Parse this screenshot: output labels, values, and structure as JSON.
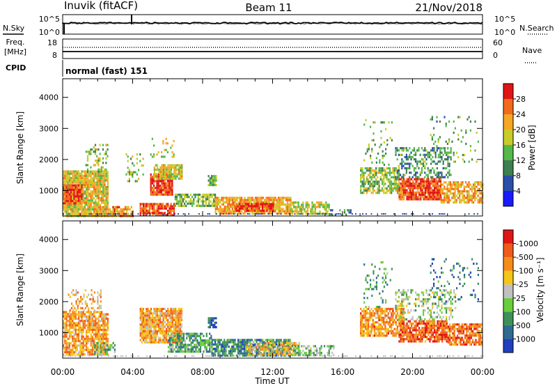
{
  "header": {
    "radar": "Inuvik (fitACF)",
    "beam": "Beam 11",
    "date": "21/Nov/2018"
  },
  "status_panels": {
    "nsky_label": "N.Sky",
    "nsearch_label": "N.Search",
    "noise_ticks_left": [
      "10^5",
      "10^0"
    ],
    "noise_ticks_right": [
      "10^5",
      "10^0"
    ],
    "freq_label": "Freq.",
    "freq_unit": "[MHz]",
    "freq_ticks": [
      "18",
      "8"
    ],
    "nave_label": "Nave",
    "nave_ticks": [
      "60",
      "0"
    ],
    "cpid_label": "CPID",
    "cpid_text": "normal (fast) 151"
  },
  "chart_data": [
    {
      "type": "heatmap",
      "name": "power",
      "ylabel": "Slant Range [km]",
      "xlabel": "",
      "x_range_hours": [
        0,
        24
      ],
      "ylim": [
        180,
        4600
      ],
      "y_ticks": [
        1000,
        2000,
        3000,
        4000
      ],
      "colorbar": {
        "label": "Power [dB]",
        "ticks": [
          4,
          8,
          12,
          16,
          20,
          24,
          28
        ],
        "colors": [
          "#1a1aff",
          "#2b4fa8",
          "#3f7f4f",
          "#55b84a",
          "#c8cc2a",
          "#f5a623",
          "#f26a1b",
          "#e01515"
        ],
        "scale": "0 to 30 dB"
      },
      "blobs": [
        {
          "t0": 0.0,
          "t1": 2.6,
          "r0": 200,
          "r1": 1650,
          "level": 0.62,
          "dens": 0.92
        },
        {
          "t0": 0.0,
          "t1": 1.1,
          "r0": 600,
          "r1": 1200,
          "level": 0.85,
          "dens": 0.9
        },
        {
          "t0": 1.3,
          "t1": 2.6,
          "r0": 1600,
          "r1": 2500,
          "level": 0.5,
          "dens": 0.3
        },
        {
          "t0": 2.4,
          "t1": 4.0,
          "r0": 200,
          "r1": 500,
          "level": 0.75,
          "dens": 0.75
        },
        {
          "t0": 3.6,
          "t1": 4.6,
          "r0": 1300,
          "r1": 2200,
          "level": 0.5,
          "dens": 0.25
        },
        {
          "t0": 4.4,
          "t1": 6.4,
          "r0": 200,
          "r1": 600,
          "level": 0.85,
          "dens": 0.85
        },
        {
          "t0": 5.0,
          "t1": 6.3,
          "r0": 850,
          "r1": 1550,
          "level": 0.9,
          "dens": 0.92
        },
        {
          "t0": 5.2,
          "t1": 6.8,
          "r0": 1400,
          "r1": 1850,
          "level": 0.6,
          "dens": 0.85
        },
        {
          "t0": 5.0,
          "t1": 6.4,
          "r0": 2100,
          "r1": 2700,
          "level": 0.55,
          "dens": 0.2
        },
        {
          "t0": 6.4,
          "t1": 8.7,
          "r0": 500,
          "r1": 900,
          "level": 0.45,
          "dens": 0.7
        },
        {
          "t0": 8.7,
          "t1": 13.0,
          "r0": 280,
          "r1": 800,
          "level": 0.7,
          "dens": 0.85
        },
        {
          "t0": 9.8,
          "t1": 12.0,
          "r0": 350,
          "r1": 600,
          "level": 0.9,
          "dens": 0.8
        },
        {
          "t0": 8.3,
          "t1": 8.8,
          "r0": 1150,
          "r1": 1500,
          "level": 0.45,
          "dens": 0.8
        },
        {
          "t0": 13.0,
          "t1": 15.2,
          "r0": 250,
          "r1": 650,
          "level": 0.55,
          "dens": 0.7
        },
        {
          "t0": 15.2,
          "t1": 16.5,
          "r0": 200,
          "r1": 400,
          "level": 0.3,
          "dens": 0.4
        },
        {
          "t0": 17.0,
          "t1": 19.2,
          "r0": 900,
          "r1": 1750,
          "level": 0.5,
          "dens": 0.7
        },
        {
          "t0": 17.2,
          "t1": 18.8,
          "r0": 1800,
          "r1": 3300,
          "level": 0.45,
          "dens": 0.15
        },
        {
          "t0": 19.2,
          "t1": 21.6,
          "r0": 750,
          "r1": 1400,
          "level": 0.88,
          "dens": 0.9
        },
        {
          "t0": 19.0,
          "t1": 22.2,
          "r0": 1400,
          "r1": 2400,
          "level": 0.35,
          "dens": 0.45
        },
        {
          "t0": 21.6,
          "t1": 24.0,
          "r0": 650,
          "r1": 1300,
          "level": 0.7,
          "dens": 0.75
        },
        {
          "t0": 21.0,
          "t1": 23.8,
          "r0": 1900,
          "r1": 3400,
          "level": 0.4,
          "dens": 0.12
        }
      ]
    },
    {
      "type": "heatmap",
      "name": "velocity",
      "ylabel": "Slant Range [km]",
      "xlabel": "Time UT",
      "x_ticks": [
        "00:00",
        "04:00",
        "08:00",
        "12:00",
        "16:00",
        "20:00",
        "00:00"
      ],
      "ylim": [
        180,
        4600
      ],
      "y_ticks": [
        1000,
        2000,
        3000,
        4000
      ],
      "colorbar": {
        "label": "Velocity [m s⁻¹]",
        "ticks": [
          "1000",
          "500",
          "100",
          "25",
          "-25",
          "-100",
          "-500",
          "-1000"
        ],
        "colors": [
          "#1f3fbf",
          "#2f6b8f",
          "#3f8f5a",
          "#6acd3a",
          "#c0c0c0",
          "#f5c518",
          "#f58c1a",
          "#f05a1a",
          "#e01515"
        ]
      },
      "blobs": [
        {
          "t0": 0.0,
          "t1": 2.6,
          "r0": 300,
          "r1": 1700,
          "level": 0.7,
          "dens": 0.8
        },
        {
          "t0": 0.3,
          "t1": 2.2,
          "r0": 1700,
          "r1": 2400,
          "level": 0.65,
          "dens": 0.3
        },
        {
          "t0": 1.8,
          "t1": 3.0,
          "r0": 300,
          "r1": 700,
          "level": 0.35,
          "dens": 0.5
        },
        {
          "t0": 4.4,
          "t1": 6.8,
          "r0": 700,
          "r1": 1800,
          "level": 0.68,
          "dens": 0.9
        },
        {
          "t0": 6.0,
          "t1": 8.5,
          "r0": 400,
          "r1": 1000,
          "level": 0.3,
          "dens": 0.75
        },
        {
          "t0": 8.5,
          "t1": 13.0,
          "r0": 250,
          "r1": 800,
          "level": 0.25,
          "dens": 0.8
        },
        {
          "t0": 10.5,
          "t1": 13.5,
          "r0": 300,
          "r1": 700,
          "level": 0.62,
          "dens": 0.6
        },
        {
          "t0": 13.0,
          "t1": 15.5,
          "r0": 250,
          "r1": 600,
          "level": 0.4,
          "dens": 0.55
        },
        {
          "t0": 8.3,
          "t1": 8.8,
          "r0": 1150,
          "r1": 1500,
          "level": 0.15,
          "dens": 0.8
        },
        {
          "t0": 17.0,
          "t1": 19.5,
          "r0": 900,
          "r1": 1800,
          "level": 0.72,
          "dens": 0.75
        },
        {
          "t0": 17.2,
          "t1": 18.8,
          "r0": 1800,
          "r1": 3300,
          "level": 0.3,
          "dens": 0.15
        },
        {
          "t0": 19.2,
          "t1": 22.0,
          "r0": 750,
          "r1": 1400,
          "level": 0.82,
          "dens": 0.85
        },
        {
          "t0": 19.0,
          "t1": 22.5,
          "r0": 1400,
          "r1": 2400,
          "level": 0.45,
          "dens": 0.35
        },
        {
          "t0": 22.0,
          "t1": 24.0,
          "r0": 650,
          "r1": 1300,
          "level": 0.78,
          "dens": 0.75
        },
        {
          "t0": 21.0,
          "t1": 23.8,
          "r0": 1900,
          "r1": 3400,
          "level": 0.2,
          "dens": 0.12
        }
      ]
    }
  ]
}
